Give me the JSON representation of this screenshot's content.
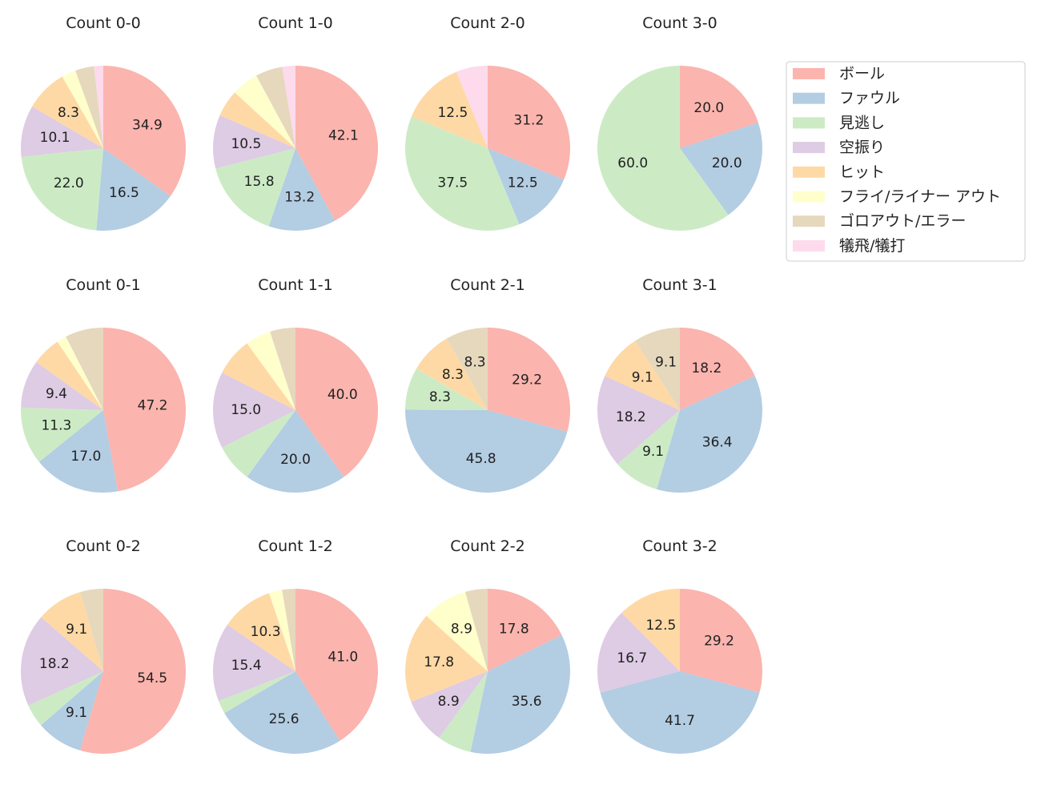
{
  "chart_data": {
    "type": "pie",
    "legend_position": "top-right",
    "categories": [
      "ボール",
      "ファウル",
      "見逃し",
      "空振り",
      "ヒット",
      "フライ/ライナー アウト",
      "ゴロアウト/エラー",
      "犠飛/犠打"
    ],
    "colors": [
      "#fbb4ae",
      "#b3cde3",
      "#ccebc5",
      "#decbe4",
      "#fed9a6",
      "#ffffcc",
      "#e5d8bd",
      "#fddaec"
    ],
    "label_threshold_percent": 8,
    "charts": [
      {
        "title": "Count 0-0",
        "values": [
          34.9,
          16.5,
          22.0,
          10.1,
          8.3,
          2.8,
          3.7,
          1.8
        ]
      },
      {
        "title": "Count 1-0",
        "values": [
          42.1,
          13.2,
          15.8,
          10.5,
          5.3,
          5.3,
          5.3,
          2.6
        ]
      },
      {
        "title": "Count 2-0",
        "values": [
          31.2,
          12.5,
          37.5,
          0,
          12.5,
          0,
          0,
          6.2
        ]
      },
      {
        "title": "Count 3-0",
        "values": [
          20.0,
          20.0,
          60.0,
          0,
          0,
          0,
          0,
          0
        ]
      },
      {
        "title": "Count 0-1",
        "values": [
          47.2,
          17.0,
          11.3,
          9.4,
          5.7,
          1.9,
          7.5,
          0
        ]
      },
      {
        "title": "Count 1-1",
        "values": [
          40.0,
          20.0,
          7.5,
          15.0,
          7.5,
          5.0,
          5.0,
          0
        ]
      },
      {
        "title": "Count 2-1",
        "values": [
          29.2,
          45.8,
          8.3,
          0,
          8.3,
          0,
          8.3,
          0
        ]
      },
      {
        "title": "Count 3-1",
        "values": [
          18.2,
          36.4,
          9.1,
          18.2,
          9.1,
          0,
          9.1,
          0
        ]
      },
      {
        "title": "Count 0-2",
        "values": [
          54.5,
          9.1,
          4.5,
          18.2,
          9.1,
          0,
          4.5,
          0
        ]
      },
      {
        "title": "Count 1-2",
        "values": [
          41.0,
          25.6,
          2.6,
          15.4,
          10.3,
          2.6,
          2.6,
          0
        ]
      },
      {
        "title": "Count 2-2",
        "values": [
          17.8,
          35.6,
          6.7,
          8.9,
          17.8,
          8.9,
          4.4,
          0
        ]
      },
      {
        "title": "Count 3-2",
        "values": [
          29.2,
          41.7,
          0,
          16.7,
          12.5,
          0,
          0,
          0
        ]
      }
    ]
  }
}
